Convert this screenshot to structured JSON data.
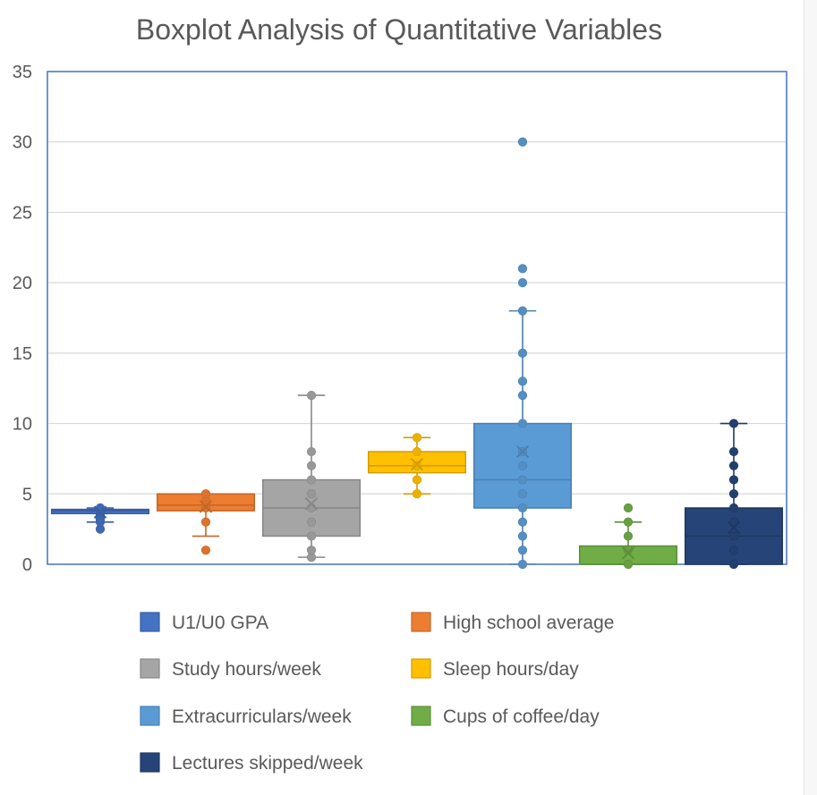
{
  "chart_data": {
    "type": "boxplot",
    "title": "Boxplot Analysis of Quantitative Variables",
    "xlabel": "",
    "ylabel": "",
    "ylim": [
      0,
      35
    ],
    "yticks": [
      0,
      5,
      10,
      15,
      20,
      25,
      30,
      35
    ],
    "ytick_labels": [
      "0",
      "5",
      "10",
      "15",
      "20",
      "25",
      "30",
      "35"
    ],
    "grid": true,
    "legend_position": "bottom",
    "series": [
      {
        "name": "U1/U0 GPA",
        "color": "#4472c4",
        "min": 3.0,
        "q1": 3.6,
        "median": 3.8,
        "q3": 3.9,
        "max": 4.0,
        "mean": 3.7,
        "points": [
          2.5,
          3.0,
          3.2,
          3.5,
          3.6,
          3.7,
          3.8,
          3.9,
          4.0
        ]
      },
      {
        "name": "High school average",
        "color": "#ed7d31",
        "min": 2.0,
        "q1": 3.8,
        "median": 4.2,
        "q3": 5.0,
        "max": 5.0,
        "mean": 4.1,
        "points": [
          1.0,
          3.0,
          4.0,
          4.5,
          5.0
        ]
      },
      {
        "name": "Study hours/week",
        "color": "#a5a5a5",
        "min": 0.5,
        "q1": 2.0,
        "median": 4.0,
        "q3": 6.0,
        "max": 12.0,
        "mean": 4.3,
        "points": [
          0.5,
          1,
          2,
          3,
          4,
          5,
          6,
          7,
          8,
          12
        ]
      },
      {
        "name": "Sleep hours/day",
        "color": "#ffc000",
        "min": 5.0,
        "q1": 6.5,
        "median": 7.0,
        "q3": 8.0,
        "max": 9.0,
        "mean": 7.1,
        "points": [
          5,
          6,
          7,
          8,
          9
        ]
      },
      {
        "name": "Extracurriculars/week",
        "color": "#5b9bd5",
        "min": 0,
        "q1": 4.0,
        "median": 6.0,
        "q3": 10.0,
        "max": 18.0,
        "mean": 8.0,
        "points": [
          0,
          1,
          2,
          3,
          4,
          5,
          6,
          7,
          8,
          10,
          12,
          13,
          15,
          18,
          20,
          21,
          30
        ]
      },
      {
        "name": "Cups of coffee/day",
        "color": "#70ad47",
        "min": 0,
        "q1": 0,
        "median": 0,
        "q3": 1.3,
        "max": 3.0,
        "mean": 0.8,
        "points": [
          0,
          1,
          2,
          3,
          4
        ]
      },
      {
        "name": "Lectures skipped/week",
        "color": "#264478",
        "min": 0,
        "q1": 0,
        "median": 2.0,
        "q3": 4.0,
        "max": 10.0,
        "mean": 2.6,
        "points": [
          0,
          1,
          2,
          3,
          4,
          5,
          6,
          7,
          8,
          10
        ]
      }
    ]
  }
}
